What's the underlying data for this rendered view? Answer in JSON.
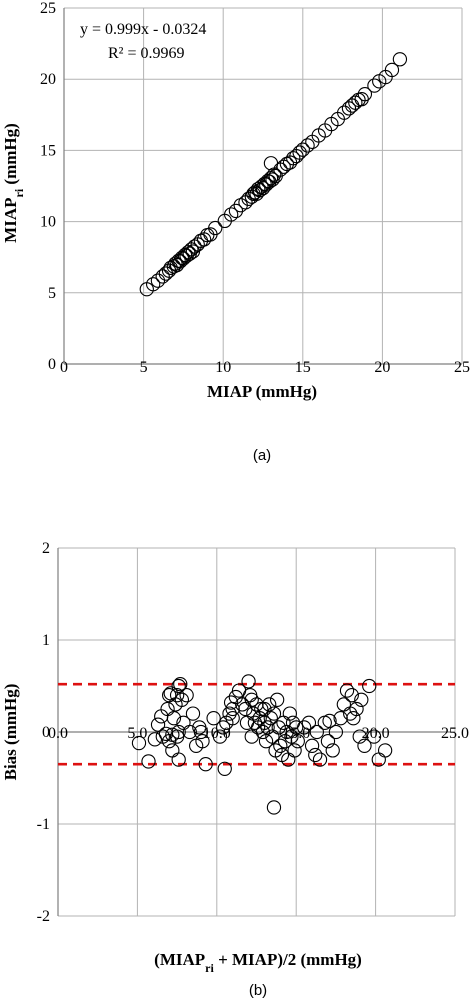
{
  "chart_data": [
    {
      "type": "scatter",
      "caption": "(a)",
      "xlabel": "MIAP (mmHg)",
      "ylabel_main": "MIAP",
      "ylabel_sub": "ri",
      "ylabel_tail": " (mmHg)",
      "xlim": [
        0,
        25
      ],
      "ylim": [
        0,
        25
      ],
      "xticks": [
        "0",
        "5",
        "10",
        "15",
        "20",
        "25"
      ],
      "yticks": [
        "0",
        "5",
        "10",
        "15",
        "20",
        "25"
      ],
      "grid": true,
      "annotation_line1": "y = 0.999x - 0.0324",
      "annotation_line2": "R² = 0.9969",
      "points": [
        [
          5.2,
          5.25
        ],
        [
          5.6,
          5.6
        ],
        [
          5.9,
          5.85
        ],
        [
          6.2,
          6.15
        ],
        [
          6.4,
          6.35
        ],
        [
          6.6,
          6.55
        ],
        [
          6.7,
          6.75
        ],
        [
          6.9,
          6.85
        ],
        [
          7.0,
          7.05
        ],
        [
          7.1,
          6.95
        ],
        [
          7.2,
          7.25
        ],
        [
          7.3,
          7.2
        ],
        [
          7.4,
          7.45
        ],
        [
          7.5,
          7.4
        ],
        [
          7.6,
          7.65
        ],
        [
          7.7,
          7.6
        ],
        [
          7.8,
          7.85
        ],
        [
          7.9,
          7.75
        ],
        [
          8.0,
          8.05
        ],
        [
          8.1,
          7.9
        ],
        [
          8.2,
          8.25
        ],
        [
          8.4,
          8.4
        ],
        [
          8.6,
          8.65
        ],
        [
          8.8,
          8.75
        ],
        [
          9.0,
          9.05
        ],
        [
          9.2,
          9.1
        ],
        [
          9.5,
          9.55
        ],
        [
          10.1,
          10.05
        ],
        [
          10.5,
          10.5
        ],
        [
          10.8,
          10.75
        ],
        [
          11.1,
          11.15
        ],
        [
          11.4,
          11.35
        ],
        [
          11.6,
          11.6
        ],
        [
          11.8,
          11.75
        ],
        [
          11.9,
          11.95
        ],
        [
          12.0,
          12.05
        ],
        [
          12.1,
          11.95
        ],
        [
          12.2,
          12.3
        ],
        [
          12.3,
          12.2
        ],
        [
          12.4,
          12.45
        ],
        [
          12.5,
          12.35
        ],
        [
          12.6,
          12.65
        ],
        [
          12.7,
          12.6
        ],
        [
          12.8,
          12.85
        ],
        [
          12.9,
          12.8
        ],
        [
          13.0,
          13.05
        ],
        [
          13.1,
          12.95
        ],
        [
          13.2,
          13.3
        ],
        [
          13.3,
          13.2
        ],
        [
          13.0,
          14.1
        ],
        [
          13.6,
          13.65
        ],
        [
          13.8,
          13.85
        ],
        [
          14.0,
          14.05
        ],
        [
          14.2,
          14.15
        ],
        [
          14.4,
          14.45
        ],
        [
          14.6,
          14.6
        ],
        [
          14.8,
          14.85
        ],
        [
          15.0,
          15.05
        ],
        [
          15.3,
          15.35
        ],
        [
          15.6,
          15.6
        ],
        [
          16.0,
          16.05
        ],
        [
          16.4,
          16.4
        ],
        [
          16.8,
          16.85
        ],
        [
          17.2,
          17.2
        ],
        [
          17.6,
          17.65
        ],
        [
          17.9,
          17.95
        ],
        [
          18.1,
          18.15
        ],
        [
          18.3,
          18.35
        ],
        [
          18.5,
          18.55
        ],
        [
          18.7,
          18.6
        ],
        [
          18.9,
          18.95
        ],
        [
          19.5,
          19.55
        ],
        [
          19.8,
          19.85
        ],
        [
          20.2,
          20.15
        ],
        [
          20.6,
          20.65
        ],
        [
          21.1,
          21.4
        ]
      ]
    },
    {
      "type": "scatter",
      "caption": "(b)",
      "xlabel_main": "(MIAP",
      "xlabel_sub": "ri",
      "xlabel_tail": " + MIAP)/2 (mmHg)",
      "ylabel": "Bias (mmHg)",
      "xlim": [
        0,
        25
      ],
      "ylim": [
        -2,
        2
      ],
      "xticks": [
        "0.0",
        "5.0",
        "10.0",
        "15.0",
        "20.0",
        "25.0"
      ],
      "yticks": [
        "-2",
        "-1",
        "0",
        "1",
        "2"
      ],
      "grid": true,
      "reference_lines": [
        0.52,
        -0.35
      ],
      "reference_line_color": "#dd1111",
      "points": [
        [
          5.1,
          -0.12
        ],
        [
          5.7,
          -0.32
        ],
        [
          6.1,
          -0.08
        ],
        [
          6.3,
          0.08
        ],
        [
          6.5,
          0.17
        ],
        [
          6.6,
          -0.05
        ],
        [
          6.8,
          -0.02
        ],
        [
          6.9,
          0.25
        ],
        [
          7.0,
          0.4
        ],
        [
          7.1,
          0.42
        ],
        [
          7.2,
          -0.03
        ],
        [
          7.3,
          0.15
        ],
        [
          7.4,
          0.3
        ],
        [
          7.5,
          0.4
        ],
        [
          7.6,
          0.5
        ],
        [
          7.7,
          0.52
        ],
        [
          7.8,
          0.35
        ],
        [
          7.0,
          -0.1
        ],
        [
          7.2,
          -0.2
        ],
        [
          7.5,
          -0.05
        ],
        [
          7.6,
          0.0
        ],
        [
          7.9,
          0.1
        ],
        [
          8.1,
          0.4
        ],
        [
          8.3,
          0.0
        ],
        [
          8.5,
          0.2
        ],
        [
          8.7,
          -0.15
        ],
        [
          8.9,
          0.05
        ],
        [
          9.1,
          -0.1
        ],
        [
          9.0,
          0.0
        ],
        [
          9.3,
          -0.35
        ],
        [
          7.6,
          -0.3
        ],
        [
          9.8,
          0.15
        ],
        [
          10.2,
          -0.05
        ],
        [
          10.4,
          0.05
        ],
        [
          10.6,
          0.1
        ],
        [
          10.8,
          0.2
        ],
        [
          10.9,
          0.32
        ],
        [
          11.0,
          0.25
        ],
        [
          11.2,
          0.38
        ],
        [
          11.4,
          0.45
        ],
        [
          11.6,
          0.3
        ],
        [
          11.8,
          0.25
        ],
        [
          12.0,
          0.55
        ],
        [
          12.1,
          0.4
        ],
        [
          12.2,
          0.35
        ],
        [
          12.3,
          0.2
        ],
        [
          12.4,
          0.1
        ],
        [
          12.5,
          0.3
        ],
        [
          12.6,
          0.05
        ],
        [
          12.7,
          0.15
        ],
        [
          12.8,
          0.25
        ],
        [
          12.9,
          0.0
        ],
        [
          13.0,
          0.1
        ],
        [
          13.1,
          -0.1
        ],
        [
          13.2,
          0.05
        ],
        [
          13.3,
          0.3
        ],
        [
          13.4,
          0.15
        ],
        [
          13.5,
          -0.05
        ],
        [
          13.6,
          0.2
        ],
        [
          13.7,
          -0.2
        ],
        [
          13.8,
          0.35
        ],
        [
          13.9,
          0.05
        ],
        [
          14.0,
          -0.15
        ],
        [
          14.1,
          -0.25
        ],
        [
          14.2,
          0.1
        ],
        [
          14.3,
          -0.1
        ],
        [
          14.4,
          0.0
        ],
        [
          14.5,
          -0.3
        ],
        [
          14.6,
          0.2
        ],
        [
          14.7,
          -0.05
        ],
        [
          14.8,
          0.1
        ],
        [
          14.9,
          -0.2
        ],
        [
          15.0,
          0.05
        ],
        [
          15.1,
          -0.1
        ],
        [
          13.6,
          -0.82
        ],
        [
          15.8,
          0.1
        ],
        [
          16.0,
          -0.15
        ],
        [
          16.3,
          0.0
        ],
        [
          16.5,
          -0.3
        ],
        [
          16.8,
          0.1
        ],
        [
          17.0,
          -0.1
        ],
        [
          17.3,
          -0.2
        ],
        [
          17.5,
          0.0
        ],
        [
          17.8,
          0.15
        ],
        [
          18.0,
          0.3
        ],
        [
          18.2,
          0.45
        ],
        [
          18.4,
          0.2
        ],
        [
          18.6,
          0.15
        ],
        [
          18.8,
          0.25
        ],
        [
          19.0,
          -0.05
        ],
        [
          19.3,
          -0.15
        ],
        [
          19.6,
          0.5
        ],
        [
          19.9,
          -0.05
        ],
        [
          20.2,
          -0.3
        ],
        [
          20.6,
          -0.2
        ],
        [
          10.5,
          -0.4
        ],
        [
          11.0,
          0.15
        ],
        [
          11.9,
          0.1
        ],
        [
          12.2,
          -0.05
        ],
        [
          13.0,
          0.25
        ],
        [
          15.5,
          0.05
        ],
        [
          16.2,
          -0.25
        ],
        [
          17.1,
          0.12
        ],
        [
          18.5,
          0.4
        ],
        [
          19.1,
          0.35
        ]
      ]
    }
  ]
}
